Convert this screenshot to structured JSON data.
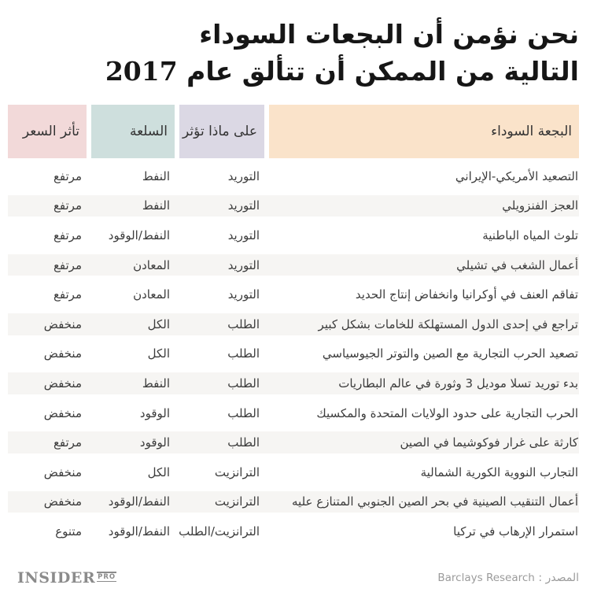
{
  "title": {
    "line1": "نحن نؤمن أن البجعات السوداء",
    "line2": "التالية من الممكن أن تتألق عام 2017"
  },
  "chart_data": {
    "type": "table",
    "title": "نحن نؤمن أن البجعات السوداء التالية من الممكن أن تتألق عام 2017",
    "columns": [
      {
        "id": "swan",
        "label": "البجعة السوداء",
        "bg": "#fae3ca"
      },
      {
        "id": "affects",
        "label": "على ماذا تؤثر",
        "bg": "#dbd8e4"
      },
      {
        "id": "commodity",
        "label": "السلعة",
        "bg": "#cedfdd"
      },
      {
        "id": "price",
        "label": "تأثر السعر",
        "bg": "#f2d9d9"
      }
    ],
    "rows": [
      {
        "swan": "التصعيد الأمريكي-الإيراني",
        "affects": "التوريد",
        "commodity": "النفط",
        "price": "مرتفع"
      },
      {
        "swan": "العجز الفنزويلي",
        "affects": "التوريد",
        "commodity": "النفط",
        "price": "مرتفع"
      },
      {
        "swan": "تلوث المياه الباطنية",
        "affects": "التوريد",
        "commodity": "النفط/الوقود",
        "price": "مرتفع"
      },
      {
        "swan": "أعمال الشغب في تشيلي",
        "affects": "التوريد",
        "commodity": "المعادن",
        "price": "مرتفع"
      },
      {
        "swan": "تفاقم العنف في أوكرانيا وانخفاض إنتاج الحديد",
        "affects": "التوريد",
        "commodity": "المعادن",
        "price": "مرتفع"
      },
      {
        "swan": "تراجع في إحدى الدول المستهلكة للخامات بشكل كبير",
        "affects": "الطلب",
        "commodity": "الكل",
        "price": "منخفض"
      },
      {
        "swan": "تصعيد الحرب التجارية مع الصين والتوتر الجيوسياسي",
        "affects": "الطلب",
        "commodity": "الكل",
        "price": "منخفض"
      },
      {
        "swan": "بدء توريد تسلا موديل 3 وثورة في عالم البطاريات",
        "affects": "الطلب",
        "commodity": "النفط",
        "price": "منخفض"
      },
      {
        "swan": "الحرب التجارية على حدود الولايات المتحدة والمكسيك",
        "affects": "الطلب",
        "commodity": "الوقود",
        "price": "منخفض"
      },
      {
        "swan": "كارثة على غرار فوكوشيما في الصين",
        "affects": "الطلب",
        "commodity": "الوقود",
        "price": "مرتفع"
      },
      {
        "swan": "التجارب النووية الكورية الشمالية",
        "affects": "الترانزيت",
        "commodity": "الكل",
        "price": "منخفض"
      },
      {
        "swan": "أعمال التنقيب الصينية في بحر الصين الجنوبي المتنازع عليه",
        "affects": "الترانزيت",
        "commodity": "النفط/الوقود",
        "price": "منخفض"
      },
      {
        "swan": "استمرار الإرهاب في تركيا",
        "affects": "الترانزيت/الطلب",
        "commodity": "النفط/الوقود",
        "price": "متنوع"
      }
    ]
  },
  "footer": {
    "source_label": "المصدر :",
    "source_value": "Barclays Research",
    "logo_main": "INSIDER",
    "logo_pro": "PRO"
  },
  "colors": {
    "header_swan_bg": "#fae3ca",
    "header_affects_bg": "#dbd8e4",
    "header_commodity_bg": "#cedfdd",
    "header_price_bg": "#f2d9d9",
    "stripe_bg": "#f6f5f3",
    "title_text": "#161616",
    "body_text": "#3c3c3c",
    "footer_gray": "#9b9b9b"
  }
}
